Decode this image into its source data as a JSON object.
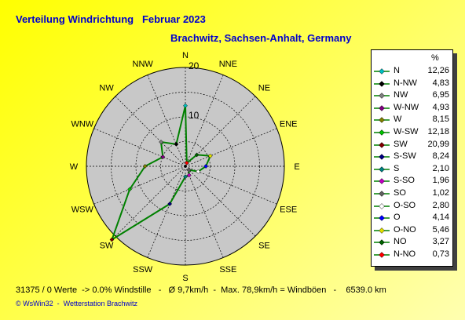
{
  "header": {
    "title": "Verteilung Windrichtung   Februar 2023",
    "subtitle": "Brachwitz, Sachsen-Anhalt, Germany"
  },
  "legend": {
    "unit": "%"
  },
  "footer": {
    "stats": "31375 / 0 Werte  -> 0.0% Windstille   -   Ø 9,7km/h  -  Max. 78,9km/h = Windböen   -    6539.0 km",
    "credit": "© WsWin32  -  Wetterstation Brachwitz"
  },
  "chart_data": {
    "type": "radar",
    "title": "Verteilung Windrichtung   Februar 2023",
    "subtitle": "Brachwitz, Sachsen-Anhalt, Germany",
    "radial_ticks": [
      "10",
      "20"
    ],
    "radial_max": 20,
    "grid": true,
    "legend_position": "right",
    "line_color": "#008000",
    "directions": [
      {
        "name": "N",
        "label": "N",
        "value": 12.26,
        "value_label": "12,26",
        "color": "#00c0c0",
        "marker": "diamond"
      },
      {
        "name": "NNW",
        "label": "N-NW",
        "value": 4.83,
        "value_label": "4,83",
        "color": "#000000",
        "marker": "diamond"
      },
      {
        "name": "NW",
        "label": "NW",
        "value": 6.95,
        "value_label": "6,95",
        "color": "#808080",
        "marker": "diamond"
      },
      {
        "name": "WNW",
        "label": "W-NW",
        "value": 4.93,
        "value_label": "4,93",
        "color": "#800080",
        "marker": "diamond"
      },
      {
        "name": "W",
        "label": "W",
        "value": 8.15,
        "value_label": "8,15",
        "color": "#808000",
        "marker": "diamond"
      },
      {
        "name": "WSW",
        "label": "W-SW",
        "value": 12.18,
        "value_label": "12,18",
        "color": "#00c000",
        "marker": "diamond"
      },
      {
        "name": "SW",
        "label": "SW",
        "value": 20.99,
        "value_label": "20,99",
        "color": "#800000",
        "marker": "diamond"
      },
      {
        "name": "SSW",
        "label": "S-SW",
        "value": 8.24,
        "value_label": "8,24",
        "color": "#000080",
        "marker": "diamond"
      },
      {
        "name": "S",
        "label": "S",
        "value": 2.1,
        "value_label": "2,10",
        "color": "#008080",
        "marker": "diamond"
      },
      {
        "name": "SSO",
        "label": "S-SO",
        "value": 1.96,
        "value_label": "1,96",
        "color": "#c000c0",
        "marker": "diamond"
      },
      {
        "name": "SO",
        "label": "SO",
        "value": 1.02,
        "value_label": "1,02",
        "color": "#606060",
        "marker": "diamond"
      },
      {
        "name": "OSO",
        "label": "O-SO",
        "value": 2.8,
        "value_label": "2,80",
        "color": "#ffffff",
        "marker": "diamond"
      },
      {
        "name": "O",
        "label": "O",
        "value": 4.14,
        "value_label": "4,14",
        "color": "#0000ff",
        "marker": "diamond"
      },
      {
        "name": "ONO",
        "label": "O-NO",
        "value": 5.46,
        "value_label": "5,46",
        "color": "#e0e000",
        "marker": "diamond"
      },
      {
        "name": "NO",
        "label": "NO",
        "value": 3.27,
        "value_label": "3,27",
        "color": "#006000",
        "marker": "diamond"
      },
      {
        "name": "NNO",
        "label": "N-NO",
        "value": 0.73,
        "value_label": "0,73",
        "color": "#ff0000",
        "marker": "diamond"
      }
    ],
    "compass_labels": [
      "N",
      "NNE",
      "NE",
      "ENE",
      "E",
      "ESE",
      "SE",
      "SSE",
      "S",
      "SSW",
      "SW",
      "WSW",
      "W",
      "WNW",
      "NW",
      "NNW"
    ]
  }
}
